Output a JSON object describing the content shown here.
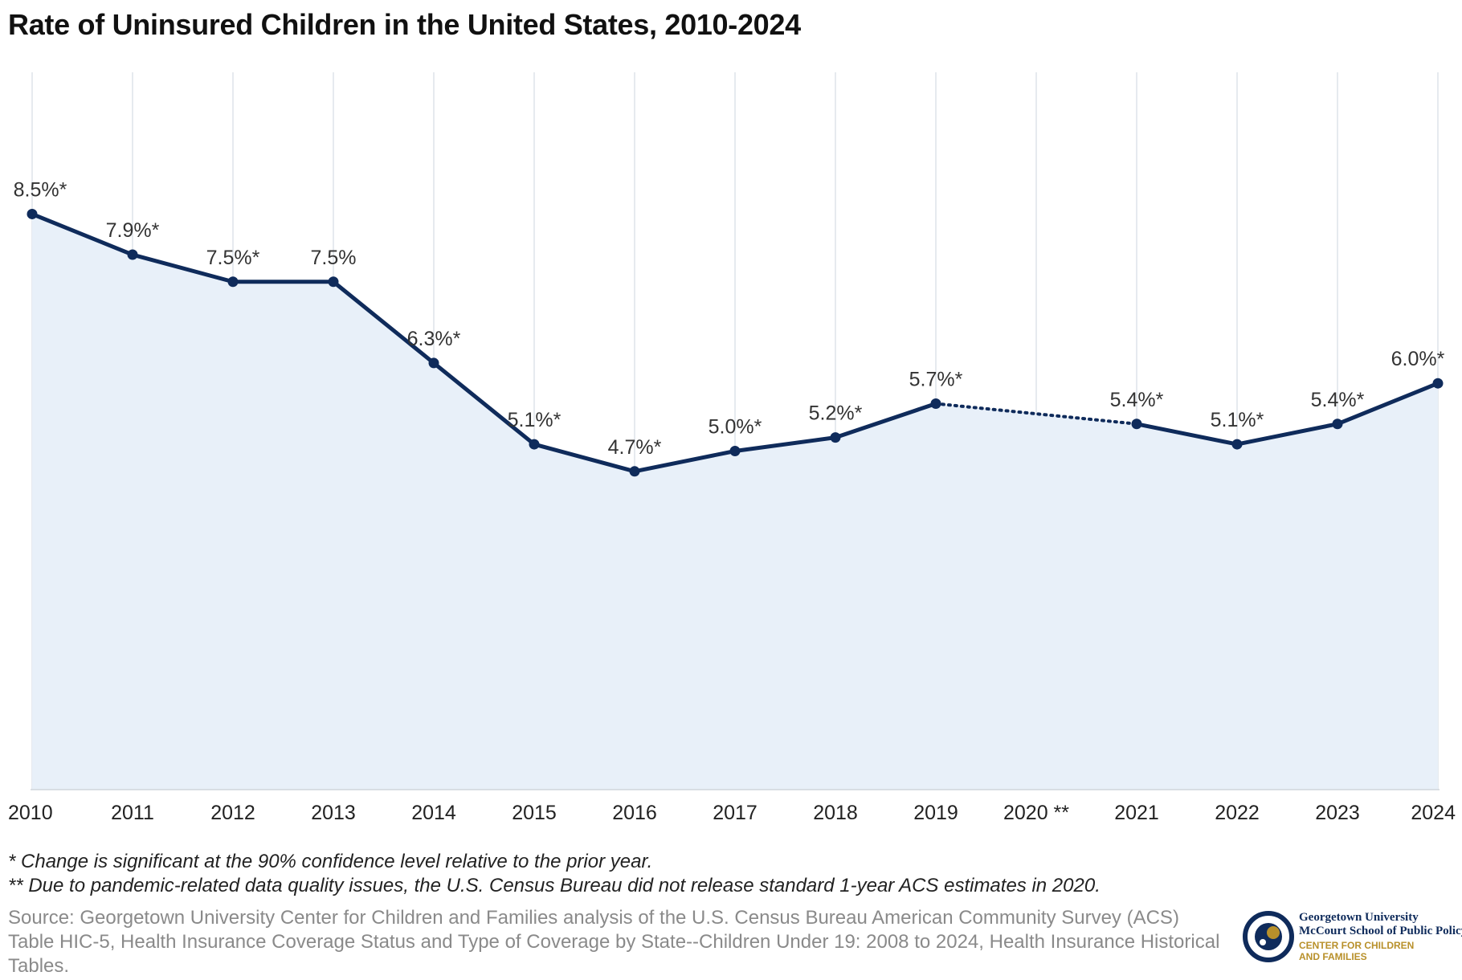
{
  "title": "Rate of Uninsured Children in the United States, 2010-2024",
  "notes": {
    "significance": "* Change is significant at the 90% confidence level relative to the prior year.",
    "pandemic": "** Due to pandemic-related data quality issues, the U.S. Census Bureau did not release standard 1-year ACS estimates in 2020."
  },
  "source": "Source: Georgetown University Center for Children and Families analysis of the U.S. Census Bureau American Community Survey (ACS) Table HIC-5, Health Insurance Coverage Status and Type of Coverage by State--Children Under 19: 2008 to 2024, Health Insurance Historical Tables.",
  "logo": {
    "line1": "Georgetown University",
    "line2": "McCourt School of Public Policy",
    "line3": "CENTER FOR CHILDREN",
    "line4": "AND FAMILIES"
  },
  "colors": {
    "line": "#0f2b5b",
    "fill": "#e8f0f9",
    "grid": "#dde3ea",
    "logo_gold": "#b8902a"
  },
  "chart_data": {
    "type": "area",
    "title": "Rate of Uninsured Children in the United States, 2010-2024",
    "x": [
      "2010",
      "2011",
      "2012",
      "2013",
      "2014",
      "2015",
      "2016",
      "2017",
      "2018",
      "2019",
      "2020",
      "2021",
      "2022",
      "2023",
      "2024"
    ],
    "x_tick_labels": [
      "2010",
      "2011",
      "2012",
      "2013",
      "2014",
      "2015",
      "2016",
      "2017",
      "2018",
      "2019",
      "2020 **",
      "2021",
      "2022",
      "2023",
      "2024"
    ],
    "values": [
      8.5,
      7.9,
      7.5,
      7.5,
      6.3,
      5.1,
      4.7,
      5.0,
      5.2,
      5.7,
      null,
      5.4,
      5.1,
      5.4,
      6.0
    ],
    "data_labels": [
      "8.5%*",
      "7.9%*",
      "7.5%*",
      "7.5%",
      "6.3%*",
      "5.1%*",
      "4.7%*",
      "5.0%*",
      "5.2%*",
      "5.7%*",
      "",
      "5.4%*",
      "5.1%*",
      "5.4%*",
      "6.0%*"
    ],
    "gap_style": "dotted between 2019 and 2021",
    "ylim": [
      0,
      10
    ],
    "grid": "vertical",
    "legend": "none"
  }
}
